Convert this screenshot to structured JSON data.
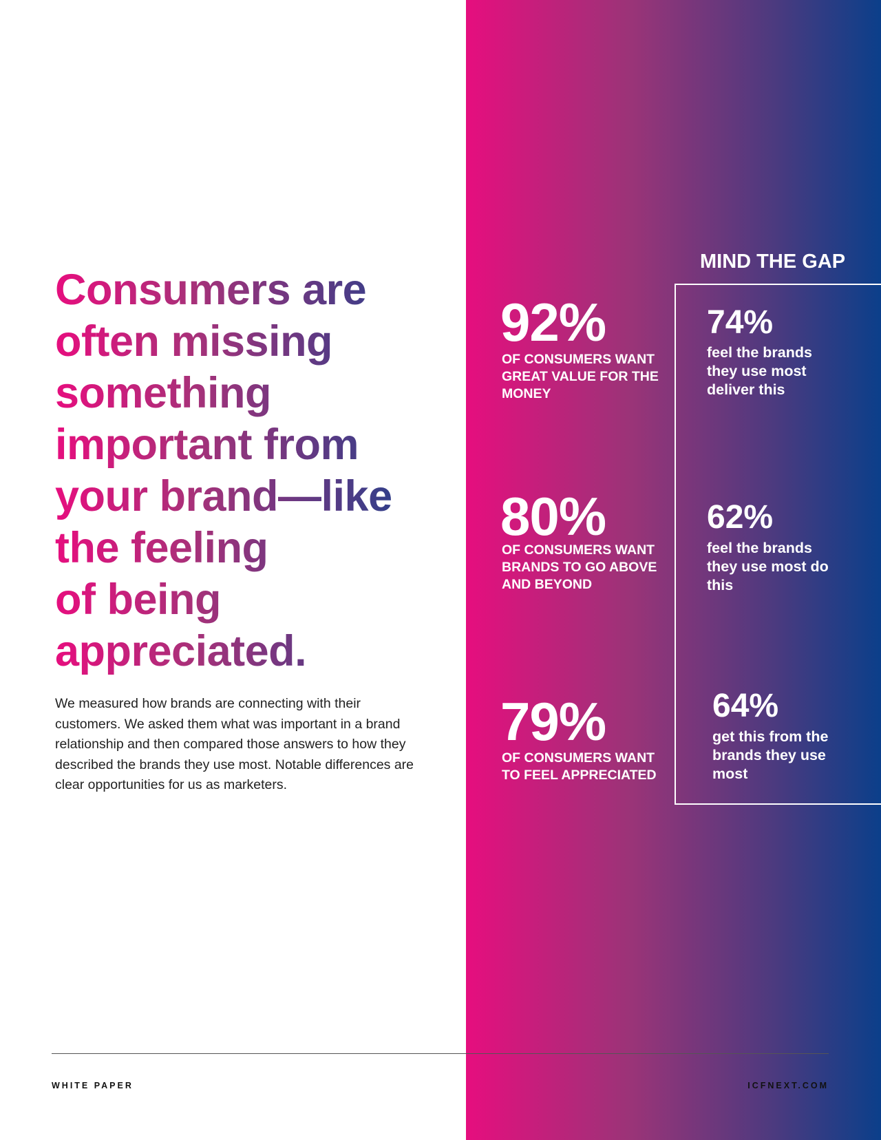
{
  "headline": {
    "lines": [
      "Consumers are",
      "often missing",
      "something",
      "important from",
      "your brand—like",
      "the feeling",
      "of being",
      "appreciated."
    ]
  },
  "body": "We measured how brands are connecting with their customers. We asked them what was important in a brand relationship and then compared those answers to how they described the brands they use most. Notable differences are clear opportunities for us as marketers.",
  "stats": [
    {
      "value": "92%",
      "description": "OF CONSUMERS WANT GREAT VALUE FOR THE MONEY"
    },
    {
      "value": "80%",
      "description": "OF CONSUMERS WANT BRANDS TO GO ABOVE AND BEYOND"
    },
    {
      "value": "79%",
      "description": "OF CONSUMERS WANT TO FEEL APPRECIATED"
    }
  ],
  "gap": {
    "title": "MIND THE GAP",
    "stats": [
      {
        "value": "74%",
        "description": "feel the brands they use most deliver this"
      },
      {
        "value": "62%",
        "description": "feel the brands they use most do this"
      },
      {
        "value": "64%",
        "description": "get this from the brands they use most"
      }
    ]
  },
  "footer": {
    "left": "WHITE PAPER",
    "right": "ICFNEXT.COM"
  }
}
